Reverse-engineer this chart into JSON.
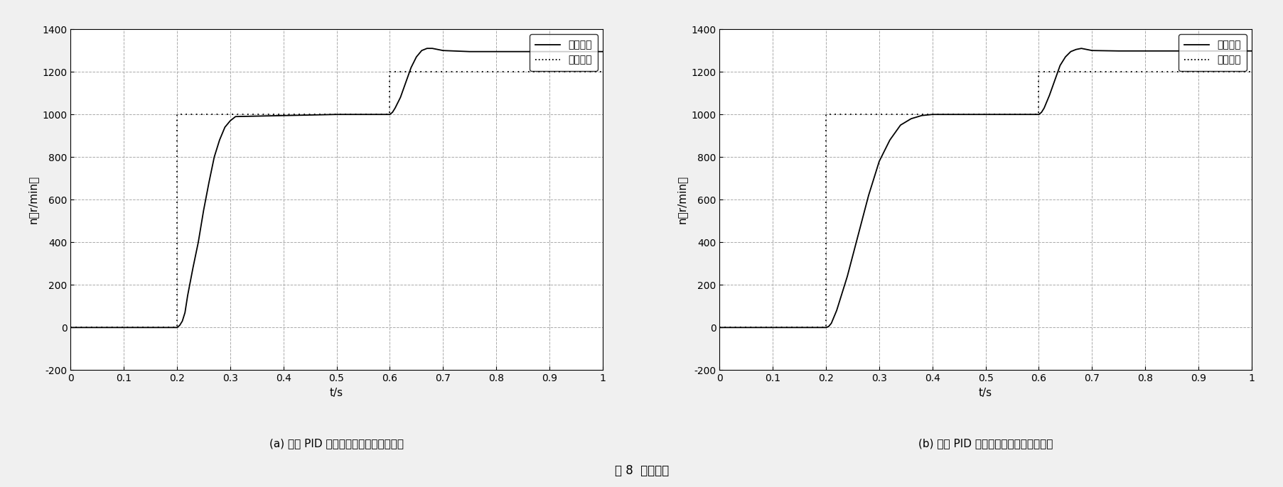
{
  "fig_width": 18.06,
  "fig_height": 6.86,
  "dpi": 100,
  "background_color": "#f0f0f0",
  "chart_a": {
    "title": "(a) 常规 PID 控制下的系统跟踪特能曲线",
    "xlabel": "t/s",
    "ylabel": "n（r/min）",
    "xlim": [
      0,
      1
    ],
    "ylim": [
      -200,
      1400
    ],
    "xticks": [
      0,
      0.1,
      0.2,
      0.3,
      0.4,
      0.5,
      0.6,
      0.7,
      0.8,
      0.9,
      1
    ],
    "yticks": [
      -200,
      0,
      200,
      400,
      600,
      800,
      1000,
      1200,
      1400
    ],
    "response_x": [
      0,
      0.19,
      0.2,
      0.205,
      0.21,
      0.215,
      0.22,
      0.23,
      0.24,
      0.25,
      0.26,
      0.27,
      0.28,
      0.29,
      0.3,
      0.31,
      0.5,
      0.59,
      0.6,
      0.605,
      0.61,
      0.62,
      0.63,
      0.64,
      0.65,
      0.66,
      0.67,
      0.68,
      0.69,
      0.7,
      0.75,
      1.0
    ],
    "response_y": [
      0,
      0,
      0,
      10,
      30,
      70,
      150,
      280,
      400,
      550,
      680,
      800,
      880,
      940,
      970,
      990,
      1000,
      1000,
      1000,
      1010,
      1030,
      1080,
      1150,
      1220,
      1270,
      1300,
      1310,
      1310,
      1305,
      1300,
      1295,
      1295
    ],
    "input_x": [
      0,
      0.2,
      0.2,
      0.6,
      0.6,
      1.0
    ],
    "input_y": [
      0,
      0,
      1000,
      1000,
      1200,
      1200
    ],
    "legend_labels": [
      "响应曲线",
      "输入信号"
    ],
    "response_color": "#000000",
    "input_color": "#000000",
    "grid_color": "#aaaaaa"
  },
  "chart_b": {
    "title": "(b) 模糊 PID 控制下的系统跟踪特能曲线",
    "xlabel": "t/s",
    "ylabel": "n（r/min）",
    "xlim": [
      0,
      1
    ],
    "ylim": [
      -200,
      1400
    ],
    "xticks": [
      0,
      0.1,
      0.2,
      0.3,
      0.4,
      0.5,
      0.6,
      0.7,
      0.8,
      0.9,
      1
    ],
    "yticks": [
      -200,
      0,
      200,
      400,
      600,
      800,
      1000,
      1200,
      1400
    ],
    "response_x": [
      0,
      0.19,
      0.2,
      0.205,
      0.21,
      0.22,
      0.24,
      0.26,
      0.28,
      0.3,
      0.32,
      0.34,
      0.36,
      0.38,
      0.4,
      0.5,
      0.59,
      0.6,
      0.605,
      0.61,
      0.62,
      0.63,
      0.64,
      0.65,
      0.66,
      0.67,
      0.68,
      0.69,
      0.7,
      0.75,
      1.0
    ],
    "response_y": [
      0,
      0,
      0,
      5,
      20,
      80,
      240,
      430,
      620,
      780,
      880,
      950,
      980,
      995,
      1000,
      1000,
      1000,
      1000,
      1010,
      1030,
      1090,
      1160,
      1230,
      1270,
      1295,
      1305,
      1310,
      1305,
      1300,
      1298,
      1298
    ],
    "input_x": [
      0,
      0.2,
      0.2,
      0.6,
      0.6,
      1.0
    ],
    "input_y": [
      0,
      0,
      1000,
      1000,
      1200,
      1200
    ],
    "legend_labels": [
      "响应曲线",
      "输入信号"
    ],
    "response_color": "#000000",
    "input_color": "#000000",
    "grid_color": "#aaaaaa"
  },
  "fig_caption": "图 8  实验结果"
}
